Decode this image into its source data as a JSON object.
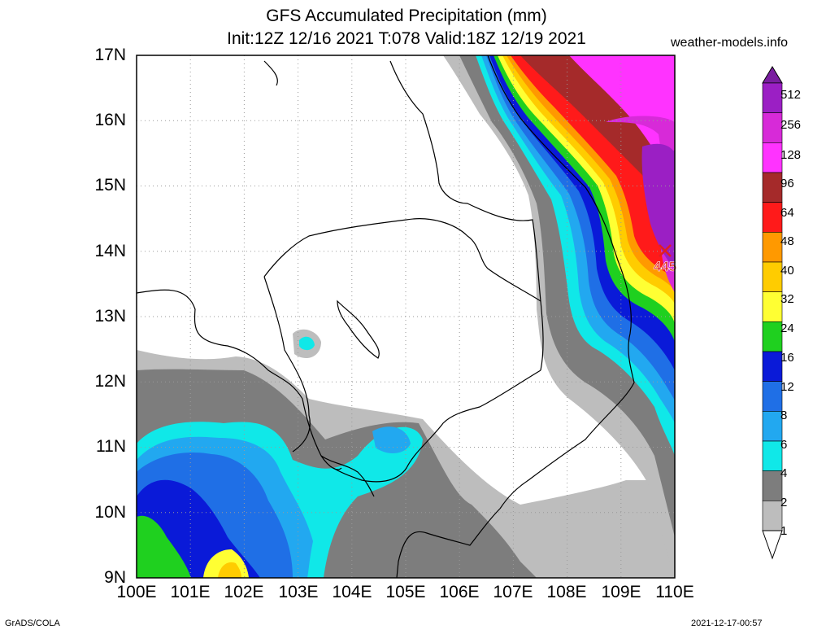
{
  "header": {
    "title": "GFS Accumulated Precipitation (mm)",
    "subtitle": "Init:12Z 12/16 2021 T:078 Valid:18Z 12/19 2021",
    "site": "weather-models.info"
  },
  "map": {
    "lat_labels": [
      "17N",
      "16N",
      "15N",
      "14N",
      "13N",
      "12N",
      "11N",
      "10N",
      "9N"
    ],
    "lon_labels": [
      "100E",
      "101E",
      "102E",
      "103E",
      "104E",
      "105E",
      "106E",
      "107E",
      "108E",
      "109E",
      "110E"
    ],
    "max_marker": {
      "value": "445",
      "lon": 109.8,
      "lat": 14.0
    }
  },
  "legend": {
    "labels": [
      "512",
      "256",
      "128",
      "96",
      "64",
      "48",
      "40",
      "32",
      "24",
      "16",
      "12",
      "8",
      "6",
      "4",
      "2",
      "1"
    ],
    "colors": [
      "#7a1ea0",
      "#9b1fc4",
      "#d72ad8",
      "#ff33ff",
      "#a52a2a",
      "#ff1a1a",
      "#ff9900",
      "#ffcc00",
      "#ffff33",
      "#1fd01f",
      "#0a1ad8",
      "#1f6fe6",
      "#22a8f0",
      "#10e8e8",
      "#7d7d7d",
      "#bdbdbd",
      "#ffffff"
    ]
  },
  "footer": {
    "left": "GrADS/COLA",
    "right": "2021-12-17-00:57"
  },
  "colors": {
    "gray_light": "#bdbdbd",
    "gray_dark": "#7d7d7d",
    "cyan": "#10e8e8",
    "sky": "#22a8f0",
    "blue": "#1f6fe6",
    "navy": "#0a1ad8",
    "green": "#1fd01f",
    "yellow": "#ffff33",
    "gold": "#ffcc00",
    "orange": "#ff9900",
    "red": "#ff1a1a",
    "brown": "#a52a2a",
    "magenta": "#ff33ff",
    "pink": "#d72ad8",
    "purple": "#9b1fc4"
  }
}
